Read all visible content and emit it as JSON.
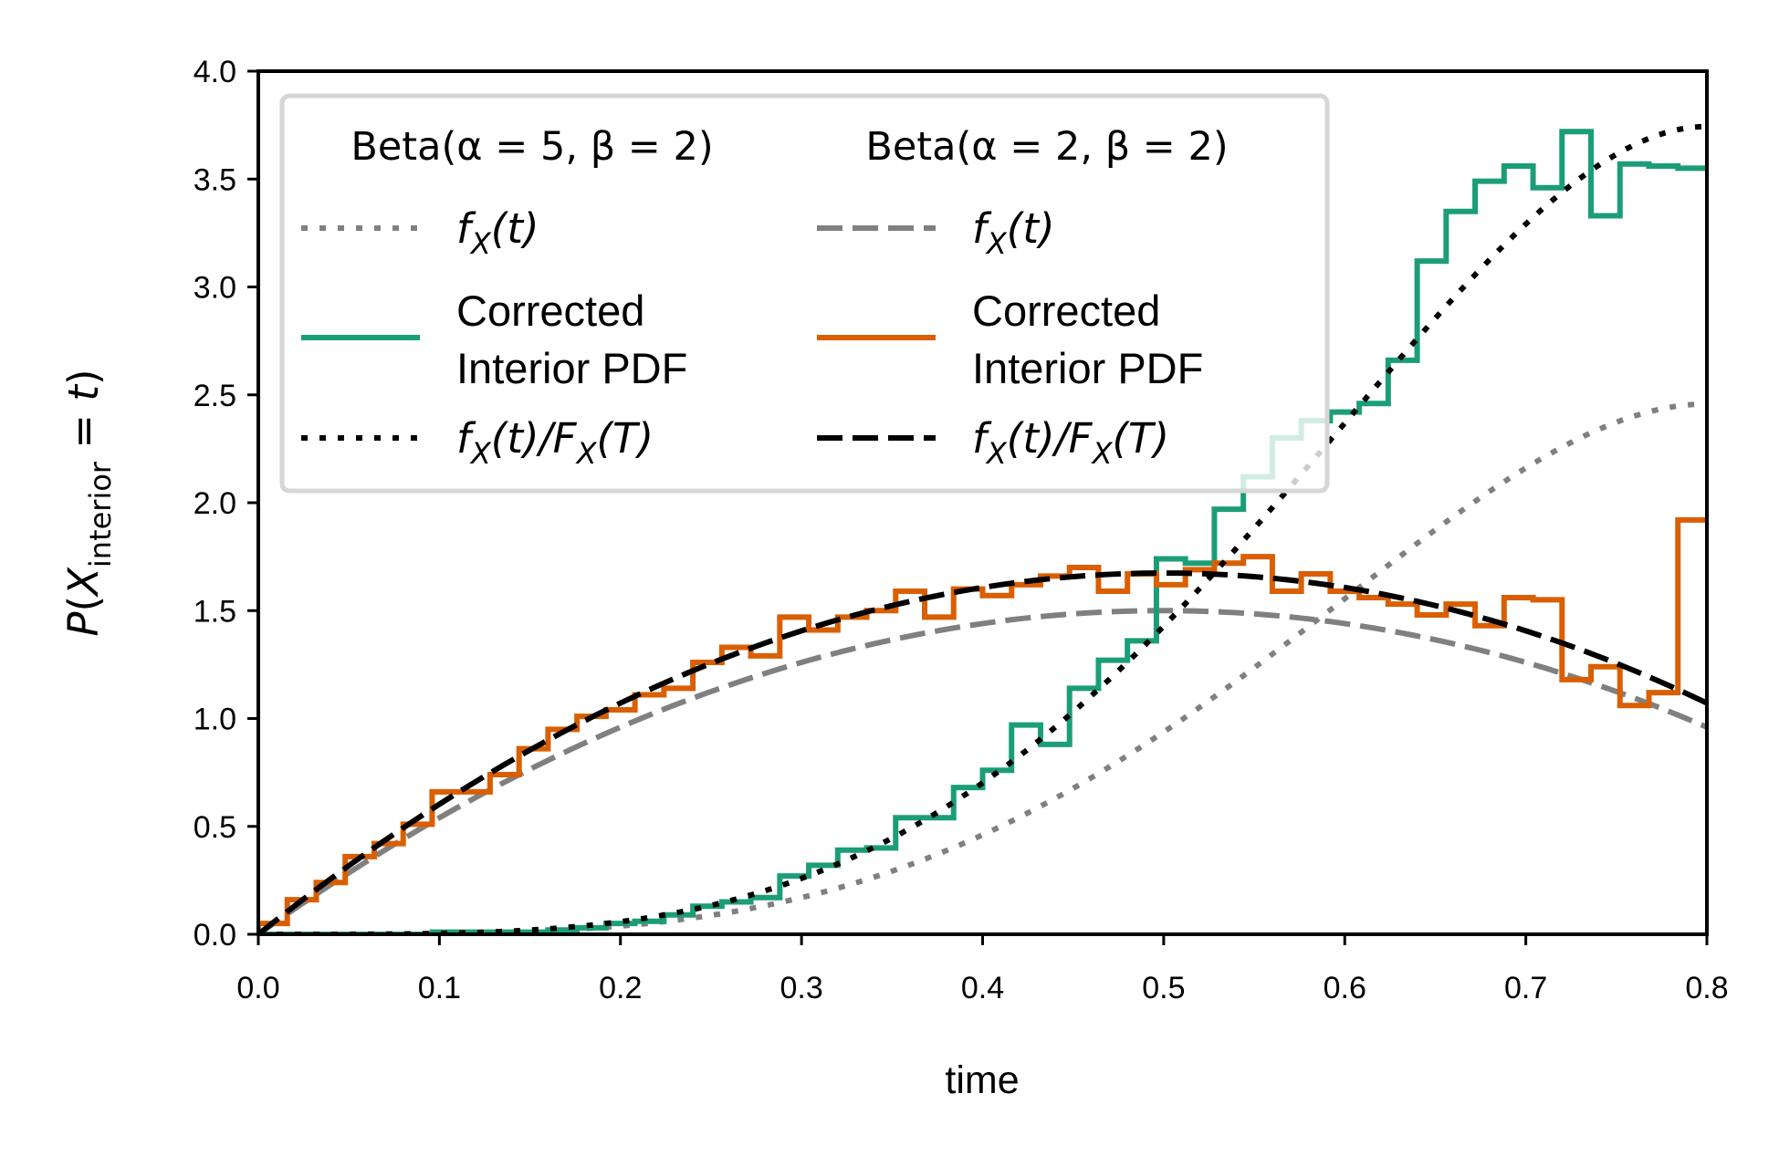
{
  "chart_data": {
    "type": "line",
    "xlabel": "time",
    "ylabel": {
      "prefix": "P(X",
      "sub": "interior",
      "suffix": " = t)"
    },
    "xlim": [
      0.0,
      0.8
    ],
    "ylim": [
      0.0,
      4.0
    ],
    "xticks": [
      0.0,
      0.1,
      0.2,
      0.3,
      0.4,
      0.5,
      0.6,
      0.7,
      0.8
    ],
    "yticks": [
      0.0,
      0.5,
      1.0,
      1.5,
      2.0,
      2.5,
      3.0,
      3.5,
      4.0
    ],
    "grid": false,
    "legend": {
      "placement": "top-left",
      "columns": [
        {
          "title": "Beta(α = 5, β = 2)",
          "entries": [
            {
              "series": "beta52_pdf",
              "label": "f_X(t)",
              "math": {
                "main": "f",
                "sub": "X",
                "rest": "(t)"
              }
            },
            {
              "series": "beta52_hist",
              "label": "Corrected Interior PDF",
              "lines": [
                "Corrected",
                "Interior PDF"
              ]
            },
            {
              "series": "beta52_norm",
              "label": "f_X(t)/F_X(T)",
              "math": {
                "main": "f",
                "sub": "X",
                "rest": "(t)/F",
                "sub2": "X",
                "rest2": "(T)"
              }
            }
          ]
        },
        {
          "title": "Beta(α = 2, β = 2)",
          "entries": [
            {
              "series": "beta22_pdf",
              "label": "f_X(t)",
              "math": {
                "main": "f",
                "sub": "X",
                "rest": "(t)"
              }
            },
            {
              "series": "beta22_hist",
              "label": "Corrected Interior PDF",
              "lines": [
                "Corrected",
                "Interior PDF"
              ]
            },
            {
              "series": "beta22_norm",
              "label": "f_X(t)/F_X(T)",
              "math": {
                "main": "f",
                "sub": "X",
                "rest": "(t)/F",
                "sub2": "X",
                "rest2": "(T)"
              }
            }
          ]
        }
      ]
    },
    "series": [
      {
        "id": "beta52_pdf",
        "kind": "function",
        "fn": "beta",
        "alpha": 5,
        "beta": 2,
        "scale": 1.0,
        "color": "#808080",
        "style": "dotted"
      },
      {
        "id": "beta52_norm",
        "kind": "function",
        "fn": "beta",
        "alpha": 5,
        "beta": 2,
        "scale": 1.5232,
        "color": "#000000",
        "style": "dotted"
      },
      {
        "id": "beta22_pdf",
        "kind": "function",
        "fn": "beta",
        "alpha": 2,
        "beta": 2,
        "scale": 1.0,
        "color": "#808080",
        "style": "dashed"
      },
      {
        "id": "beta22_norm",
        "kind": "function",
        "fn": "beta",
        "alpha": 2,
        "beta": 2,
        "scale": 1.1161,
        "color": "#000000",
        "style": "dashed"
      },
      {
        "id": "beta52_hist",
        "kind": "step",
        "color": "#1b9e77",
        "style": "solid",
        "bin_width": 0.016,
        "values": [
          0.0,
          0.0,
          0.0,
          0.0,
          0.0,
          0.0,
          0.01,
          0.01,
          0.01,
          0.01,
          0.02,
          0.03,
          0.05,
          0.06,
          0.09,
          0.13,
          0.15,
          0.17,
          0.27,
          0.32,
          0.39,
          0.4,
          0.54,
          0.54,
          0.68,
          0.76,
          0.97,
          0.88,
          1.14,
          1.27,
          1.36,
          1.74,
          1.72,
          1.97,
          2.12,
          2.3,
          2.38,
          2.42,
          2.46,
          2.66,
          3.12,
          3.35,
          3.49,
          3.56,
          3.46,
          3.72,
          3.33,
          3.57,
          3.56,
          3.55
        ]
      },
      {
        "id": "beta22_hist",
        "kind": "step",
        "color": "#d95f02",
        "style": "solid",
        "bin_width": 0.016,
        "values": [
          0.05,
          0.16,
          0.24,
          0.36,
          0.42,
          0.51,
          0.66,
          0.66,
          0.74,
          0.86,
          0.95,
          1.01,
          1.04,
          1.11,
          1.14,
          1.26,
          1.33,
          1.29,
          1.47,
          1.41,
          1.47,
          1.5,
          1.59,
          1.47,
          1.6,
          1.57,
          1.62,
          1.66,
          1.7,
          1.59,
          1.67,
          1.62,
          1.69,
          1.72,
          1.75,
          1.59,
          1.67,
          1.59,
          1.56,
          1.53,
          1.48,
          1.53,
          1.43,
          1.56,
          1.55,
          1.18,
          1.24,
          1.06,
          1.12,
          1.92
        ]
      }
    ]
  }
}
